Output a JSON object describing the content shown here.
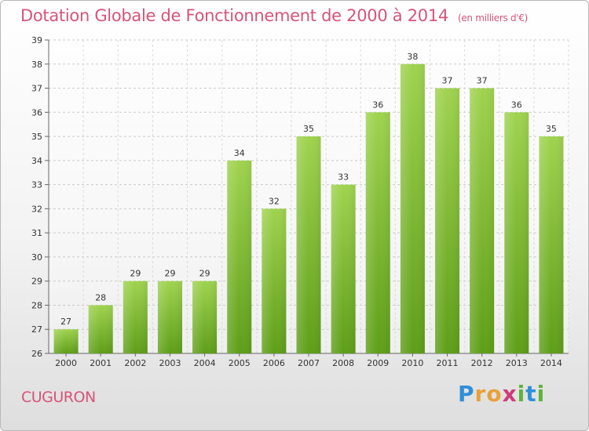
{
  "header": {
    "title": "Dotation Globale de Fonctionnement de 2000 à 2014",
    "unit": "(en milliers d'€)"
  },
  "footer": {
    "commune": "CUGURON",
    "logo": "Proxiti",
    "logo_colors": [
      "#2f8fd8",
      "#e8a13a",
      "#e8a13a",
      "#cc3b7a",
      "#5fb33a",
      "#2f8fd8",
      "#5fb33a"
    ]
  },
  "chart_data": {
    "type": "bar",
    "title": "Dotation Globale de Fonctionnement de 2000 à 2014",
    "subtitle": "(en milliers d'€)",
    "categories": [
      "2000",
      "2001",
      "2002",
      "2003",
      "2004",
      "2005",
      "2006",
      "2007",
      "2008",
      "2009",
      "2010",
      "2011",
      "2012",
      "2013",
      "2014"
    ],
    "values": [
      27,
      28,
      29,
      29,
      29,
      34,
      32,
      35,
      33,
      36,
      38,
      37,
      37,
      36,
      35
    ],
    "ylim": [
      26,
      39
    ],
    "yticks": [
      26,
      27,
      28,
      29,
      30,
      31,
      32,
      33,
      34,
      35,
      36,
      37,
      38,
      39
    ],
    "grid": true,
    "bar_color": "#7cbd2a",
    "data_labels": true
  }
}
